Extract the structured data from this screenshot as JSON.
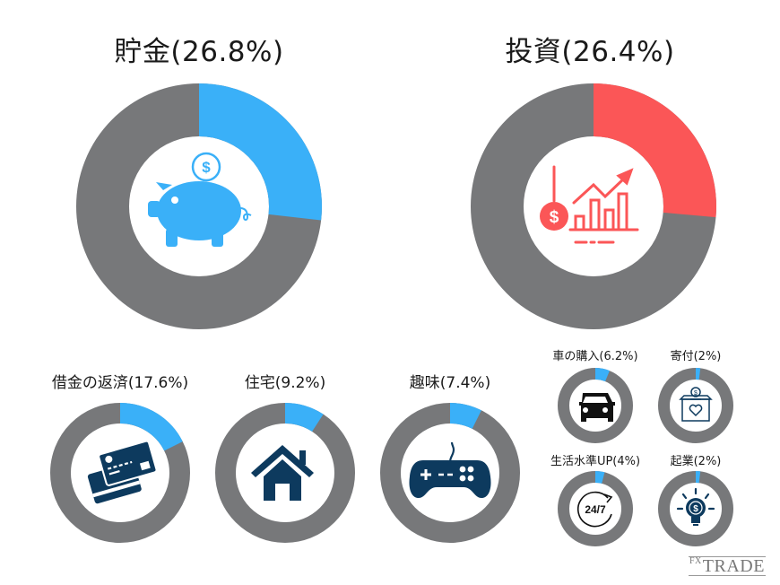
{
  "colors": {
    "track": "#77787a",
    "blue": "#3ab0f8",
    "red": "#fb5657",
    "navy": "#0d3a5e",
    "black": "#111111"
  },
  "charts": {
    "savings": {
      "label": "貯金(26.8%)",
      "name": "貯金",
      "percent": 26.8,
      "icon": "piggy-bank-icon"
    },
    "investment": {
      "label": "投資(26.4%)",
      "name": "投資",
      "percent": 26.4,
      "icon": "growth-chart-icon"
    },
    "debt": {
      "label": "借金の返済(17.6%)",
      "name": "借金の返済",
      "percent": 17.6,
      "icon": "credit-card-icon"
    },
    "housing": {
      "label": "住宅(9.2%)",
      "name": "住宅",
      "percent": 9.2,
      "icon": "house-icon"
    },
    "hobby": {
      "label": "趣味(7.4%)",
      "name": "趣味",
      "percent": 7.4,
      "icon": "game-controller-icon"
    },
    "car": {
      "label": "車の購入(6.2%)",
      "name": "車の購入",
      "percent": 6.2,
      "icon": "car-icon"
    },
    "donation": {
      "label": "寄付(2%)",
      "name": "寄付",
      "percent": 2,
      "icon": "donation-box-icon"
    },
    "lifestyle": {
      "label": "生活水準UP(4%)",
      "name": "生活水準UP",
      "percent": 4,
      "icon": "24-7-icon",
      "icon_text": "24/7"
    },
    "startup": {
      "label": "起業(2%)",
      "name": "起業",
      "percent": 2,
      "icon": "lightbulb-dollar-icon"
    }
  },
  "logo": {
    "prefix": "FX",
    "text": "TRADE"
  },
  "chart_data": {
    "type": "pie",
    "title": "",
    "subtype": "donut",
    "categories": [
      "貯金",
      "投資",
      "借金の返済",
      "住宅",
      "趣味",
      "車の購入",
      "寄付",
      "生活水準UP",
      "起業"
    ],
    "values": [
      26.8,
      26.4,
      17.6,
      9.2,
      7.4,
      6.2,
      2,
      4,
      2
    ],
    "unit": "%",
    "note": "Each category shown as its own donut: colored arc = share, gray = remainder"
  }
}
